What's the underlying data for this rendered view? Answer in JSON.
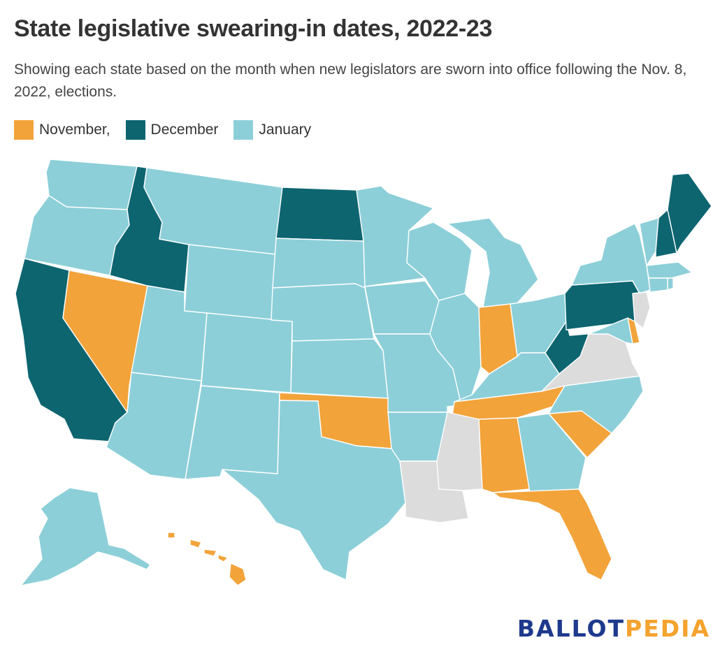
{
  "title": "State legislative swearing-in dates, 2022-23",
  "subtitle": "Showing each state based on the month when new legislators are sworn into office following the Nov. 8, 2022, elections.",
  "legend": [
    {
      "label": "November,",
      "color": "#f2a33a"
    },
    {
      "label": "December",
      "color": "#0d6570"
    },
    {
      "label": "January",
      "color": "#8ccfd8"
    }
  ],
  "colors": {
    "november": "#f2a33a",
    "december": "#0d6570",
    "january": "#8ccfd8",
    "none": "#dcdcdc"
  },
  "logo": {
    "part1": "BALLOT",
    "part2": "PEDIA"
  },
  "states": {
    "November": [
      "NV",
      "OK",
      "IN",
      "TN",
      "AL",
      "SC",
      "FL",
      "DE",
      "HI"
    ],
    "December": [
      "CA",
      "ID",
      "ND",
      "PA",
      "WV",
      "NH",
      "ME"
    ],
    "January": [
      "WA",
      "OR",
      "MT",
      "WY",
      "UT",
      "CO",
      "AZ",
      "NM",
      "TX",
      "SD",
      "NE",
      "KS",
      "MN",
      "IA",
      "MO",
      "AR",
      "WI",
      "IL",
      "MI",
      "OH",
      "KY",
      "GA",
      "NC",
      "NY",
      "VT",
      "MA",
      "CT",
      "RI",
      "MD",
      "AK"
    ],
    "No swearing-in": [
      "LA",
      "MS",
      "VA",
      "NJ"
    ]
  }
}
